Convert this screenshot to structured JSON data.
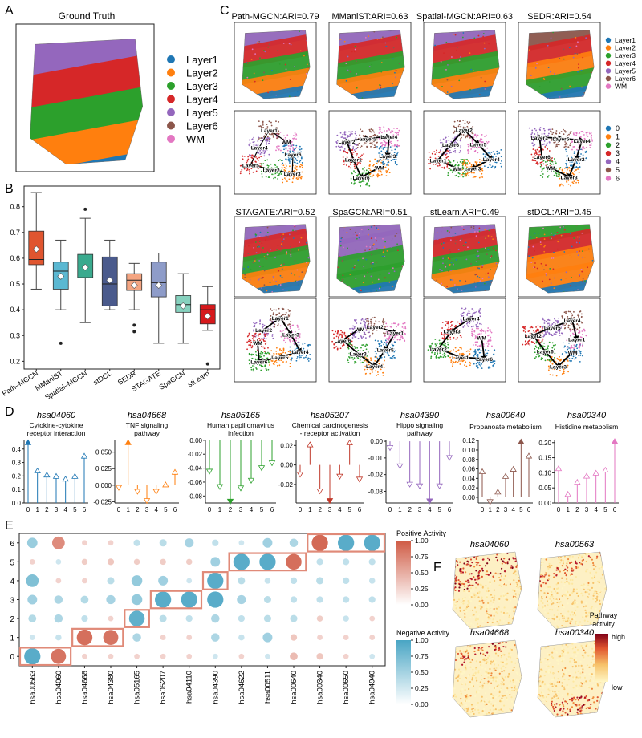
{
  "colors": {
    "layers": [
      "#1f77b4",
      "#ff7f0e",
      "#2ca02c",
      "#d62728",
      "#9467bd",
      "#8c564b",
      "#e377c2"
    ],
    "bg_spot": "#b8b8b8",
    "positive": "#c0392b",
    "negative": "#3d9fbf",
    "highlight": "#e08a78"
  },
  "panel_letters": {
    "a": "A",
    "b": "B",
    "c": "C",
    "d": "D",
    "e": "E",
    "f": "F"
  },
  "panel_a": {
    "title": "Ground Truth",
    "legend": [
      "Layer1",
      "Layer2",
      "Layer3",
      "Layer4",
      "Layer5",
      "Layer6",
      "WM"
    ]
  },
  "panel_b": {
    "chart_data": {
      "type": "box",
      "categories": [
        "Path–MGCN",
        "MManiST",
        "Spatial–MGCN",
        "stDCL",
        "SEDR",
        "STAGATE",
        "SpaGCN",
        "stLearn"
      ],
      "ylim": [
        0.17,
        0.88
      ],
      "yticks": [
        "0.2",
        "0.3",
        "0.4",
        "0.5",
        "0.6",
        "0.7",
        "0.8"
      ],
      "ytick_values": [
        0.2,
        0.3,
        0.4,
        0.5,
        0.6,
        0.7,
        0.8
      ],
      "boxes": [
        {
          "min": 0.48,
          "q1": 0.575,
          "median": 0.595,
          "q3": 0.705,
          "max": 0.855,
          "mean": 0.635,
          "outliers": [],
          "color": "#e0552f"
        },
        {
          "min": 0.4,
          "q1": 0.48,
          "median": 0.55,
          "q3": 0.585,
          "max": 0.67,
          "mean": 0.53,
          "outliers": [
            0.27
          ],
          "color": "#5bb8d2"
        },
        {
          "min": 0.35,
          "q1": 0.525,
          "median": 0.57,
          "q3": 0.615,
          "max": 0.755,
          "mean": 0.565,
          "outliers": [
            0.79
          ],
          "color": "#3aaa8e"
        },
        {
          "min": 0.4,
          "q1": 0.415,
          "median": 0.5,
          "q3": 0.605,
          "max": 0.67,
          "mean": 0.515,
          "outliers": [],
          "color": "#4a5a8c"
        },
        {
          "min": 0.4,
          "q1": 0.475,
          "median": 0.515,
          "q3": 0.54,
          "max": 0.58,
          "mean": 0.495,
          "outliers": [
            0.34,
            0.315
          ],
          "color": "#f4a582"
        },
        {
          "min": 0.27,
          "q1": 0.45,
          "median": 0.505,
          "q3": 0.585,
          "max": 0.62,
          "mean": 0.495,
          "outliers": [],
          "color": "#8e9cc9"
        },
        {
          "min": 0.27,
          "q1": 0.39,
          "median": 0.42,
          "q3": 0.455,
          "max": 0.54,
          "mean": 0.415,
          "outliers": [],
          "color": "#86d1be"
        },
        {
          "min": 0.32,
          "q1": 0.345,
          "median": 0.4,
          "q3": 0.42,
          "max": 0.49,
          "mean": 0.375,
          "outliers": [
            0.19
          ],
          "color": "#d7191c"
        }
      ]
    }
  },
  "panel_c": {
    "methods": [
      {
        "name": "Path-MGCN:ARI=0.79",
        "graph_labels": [
          "Layer6",
          "Layer3",
          "Layer2",
          "Layer5",
          "Layer4",
          "Layer1",
          "WM"
        ]
      },
      {
        "name": "MManiST:ARI=0.63",
        "graph_labels": [
          "WM",
          "Layer6",
          "Layer1",
          "Layer2",
          "Layer5",
          "Layer4",
          "Layer3"
        ]
      },
      {
        "name": "Spatial-MGCN:ARI=0.63",
        "graph_labels": [
          "WM",
          "Layer1",
          "Layer6",
          "Layer2",
          "Layer5",
          "Layer4",
          "Layer3"
        ]
      },
      {
        "name": "SEDR:ARI=0.54",
        "graph_labels": [
          "Layer6",
          "Layer1",
          "Layer5",
          "Layer4",
          "Layer2",
          "Layer3",
          "WM"
        ]
      },
      {
        "name": "STAGATE:ARI=0.52",
        "graph_labels": [
          "Layer2",
          "Layer1",
          "Layer3",
          "Layer4",
          "Layer5",
          "Layer6",
          "WM"
        ]
      },
      {
        "name": "SpaGCN:ARI=0.51",
        "graph_labels": [
          "Layer2",
          "Layer1",
          "Layer5",
          "Layer4",
          "Layer3",
          "Layer6",
          "WM"
        ]
      },
      {
        "name": "stLearn:ARI=0.49",
        "graph_labels": [
          "WM",
          "Layer6",
          "Layer1",
          "Layer2",
          "Layer3",
          "Layer4"
        ]
      },
      {
        "name": "stDCL:ARI=0.45",
        "graph_labels": [
          "WM",
          "Layer3",
          "Layer6",
          "Layer2",
          "Layer5",
          "Layer4",
          "Layer1"
        ]
      }
    ],
    "legend_layers": [
      "Layer1",
      "Layer2",
      "Layer3",
      "Layer4",
      "Layer5",
      "Layer6",
      "WM"
    ],
    "legend_clusters": [
      "0",
      "1",
      "2",
      "3",
      "4",
      "5",
      "6"
    ]
  },
  "panel_d": {
    "chart_data": [
      {
        "type": "lollipop",
        "id": "hsa04060",
        "subtitle": "Cytokine-cytokine\nreceptor interaction",
        "color": "#1f77b4",
        "x": [
          0,
          1,
          2,
          3,
          4,
          5,
          6
        ],
        "values": [
          0.45,
          0.24,
          0.21,
          0.2,
          0.18,
          0.2,
          0.35
        ],
        "ylim": [
          0,
          0.47
        ],
        "yticks": [
          "0.0",
          "0.1",
          "0.2",
          "0.3",
          "0.4"
        ],
        "ytick_values": [
          0,
          0.1,
          0.2,
          0.3,
          0.4
        ]
      },
      {
        "type": "lollipop",
        "id": "hsa04668",
        "subtitle": "TNF signaling\npathway",
        "color": "#ff7f0e",
        "x": [
          0,
          1,
          2,
          3,
          4,
          5,
          6
        ],
        "values": [
          -0.004,
          0.065,
          -0.01,
          -0.024,
          -0.01,
          0.001,
          0.02
        ],
        "ylim": [
          -0.027,
          0.069
        ],
        "yticks": [
          "-0.025",
          "0.000",
          "0.025",
          "0.050"
        ],
        "ytick_values": [
          -0.025,
          0,
          0.025,
          0.05
        ]
      },
      {
        "type": "lollipop",
        "id": "hsa05165",
        "subtitle": "Human papillomavirus\ninfection",
        "color": "#2ca02c",
        "x": [
          0,
          1,
          2,
          3,
          4,
          5,
          6
        ],
        "values": [
          -0.045,
          -0.067,
          -0.088,
          -0.069,
          -0.058,
          -0.04,
          -0.033
        ],
        "ylim": [
          -0.09,
          0.001
        ],
        "yticks": [
          "-0.08",
          "-0.06",
          "-0.04",
          "-0.02",
          "0.00"
        ],
        "ytick_values": [
          -0.08,
          -0.06,
          -0.04,
          -0.02,
          0
        ]
      },
      {
        "type": "lollipop",
        "id": "hsa05207",
        "subtitle": "Chemical carcinogenesis\n- receptor activation",
        "color": "#c0392b",
        "x": [
          0,
          1,
          2,
          3,
          4,
          5,
          6
        ],
        "values": [
          -0.01,
          0.021,
          -0.027,
          -0.037,
          -0.012,
          0.023,
          -0.015
        ],
        "ylim": [
          -0.039,
          0.026
        ],
        "yticks": [
          "-0.02",
          "0.00",
          "0.02"
        ],
        "ytick_values": [
          -0.02,
          0,
          0.02
        ]
      },
      {
        "type": "lollipop",
        "id": "hsa04390",
        "subtitle": "Hippo signaling\npathway",
        "color": "#9467bd",
        "x": [
          0,
          1,
          2,
          3,
          4,
          5,
          6
        ],
        "values": [
          -0.004,
          -0.015,
          -0.026,
          -0.027,
          -0.036,
          -0.027,
          -0.01
        ],
        "ylim": [
          -0.037,
          0.001
        ],
        "yticks": [
          "-0.03",
          "-0.02",
          "-0.01",
          "0.00"
        ],
        "ytick_values": [
          -0.03,
          -0.02,
          -0.01,
          0
        ]
      },
      {
        "type": "lollipop",
        "id": "hsa00640",
        "subtitle": "Propanoate metabolism",
        "color": "#8c564b",
        "x": [
          0,
          1,
          2,
          3,
          4,
          5,
          6
        ],
        "values": [
          0.055,
          -0.01,
          0.012,
          0.045,
          0.06,
          0.118,
          0.088
        ],
        "ylim": [
          -0.012,
          0.122
        ],
        "yticks": [
          "0.00",
          "0.02",
          "0.04",
          "0.06",
          "0.08",
          "0.10",
          "0.12"
        ],
        "ytick_values": [
          0,
          0.02,
          0.04,
          0.06,
          0.08,
          0.1,
          0.12
        ]
      },
      {
        "type": "lollipop",
        "id": "hsa00340",
        "subtitle": "Histidine metabolism",
        "color": "#e377c2",
        "x": [
          0,
          1,
          2,
          3,
          4,
          5,
          6
        ],
        "values": [
          0.115,
          0.03,
          0.07,
          0.09,
          0.1,
          0.11,
          0.205
        ],
        "ylim": [
          0,
          0.21
        ],
        "yticks": [
          "0.00",
          "0.05",
          "0.10",
          "0.15",
          "0.20"
        ],
        "ytick_values": [
          0,
          0.05,
          0.1,
          0.15,
          0.2
        ]
      }
    ]
  },
  "panel_e": {
    "chart_data": {
      "type": "dotplot",
      "x": [
        "hsa00563",
        "hsa04060",
        "hsa04668",
        "hsa04380",
        "hsa05165",
        "hsa05207",
        "hsa04110",
        "hsa04390",
        "hsa04622",
        "hsa00511",
        "hsa00640",
        "hsa00340",
        "hsa00650",
        "hsa04940"
      ],
      "y": [
        "0",
        "1",
        "2",
        "3",
        "4",
        "5",
        "6"
      ],
      "values": [
        [
          -0.95,
          0.85,
          0.05,
          0.05,
          0.05,
          0.05,
          0.05,
          -0.05,
          0.05,
          -0.05,
          0.25,
          0.15,
          0.05,
          -0.05
        ],
        [
          -0.05,
          -0.1,
          0.9,
          0.85,
          -0.3,
          0.05,
          0.05,
          -0.3,
          -0.1,
          -0.4,
          0.15,
          0.05,
          0.05,
          0.05
        ],
        [
          -0.25,
          -0.3,
          -0.15,
          0.05,
          -0.9,
          -0.2,
          -0.15,
          -0.3,
          -0.15,
          -0.2,
          -0.2,
          0.1,
          -0.1,
          0.05
        ],
        [
          -0.4,
          -0.3,
          -0.25,
          -0.35,
          -0.5,
          -0.95,
          -0.95,
          -0.95,
          -0.35,
          -0.2,
          -0.15,
          -0.15,
          -0.15,
          -0.15
        ],
        [
          -0.65,
          0.05,
          0.05,
          -0.2,
          -0.5,
          -0.4,
          -0.05,
          -0.95,
          -0.2,
          -0.1,
          -0.15,
          -0.2,
          -0.15,
          -0.1
        ],
        [
          0.05,
          -0.05,
          0.1,
          0.15,
          0.1,
          0.1,
          0.1,
          -0.4,
          -0.95,
          -0.95,
          0.9,
          -0.15,
          -0.15,
          -0.15
        ],
        [
          -0.45,
          0.65,
          0.05,
          0.05,
          -0.15,
          -0.2,
          -0.35,
          -0.15,
          -0.05,
          -0.4,
          -0.3,
          0.95,
          -0.95,
          -0.95
        ]
      ],
      "highlight_cells": [
        [
          0,
          0
        ],
        [
          0,
          1
        ],
        [
          1,
          2
        ],
        [
          1,
          3
        ],
        [
          2,
          4
        ],
        [
          3,
          5
        ],
        [
          3,
          6
        ],
        [
          4,
          7
        ],
        [
          5,
          8
        ],
        [
          5,
          9
        ],
        [
          5,
          10
        ],
        [
          6,
          11
        ],
        [
          6,
          12
        ],
        [
          6,
          13
        ]
      ],
      "legend_positive": {
        "title": "Positive Activity",
        "ticks": [
          "1.00",
          "0.75",
          "0.50",
          "0.25",
          "0.00"
        ]
      },
      "legend_negative": {
        "title": "Negative Activity",
        "ticks": [
          "1.00",
          "0.75",
          "0.50",
          "0.25",
          "0.00"
        ]
      }
    }
  },
  "panel_f": {
    "maps": [
      "hsa04060",
      "hsa00563",
      "hsa04668",
      "hsa00340"
    ],
    "legend_title": "Pathway\nactivity",
    "legend_high": "high",
    "legend_low": "low"
  }
}
